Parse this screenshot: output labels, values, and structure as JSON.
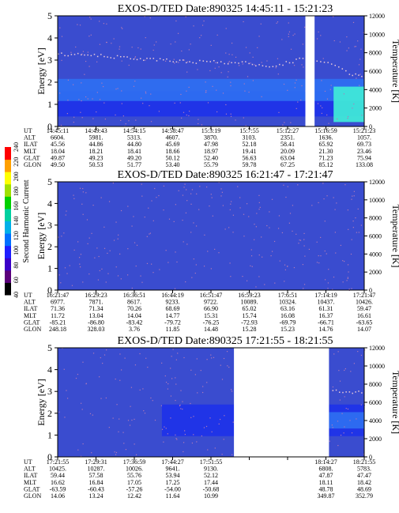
{
  "colors": {
    "background": "#3a4ccf",
    "band_dark": "#1f33e8",
    "band_light": "#2e6ef0",
    "noise_dot": "#b07ab8",
    "temperature_dot": "#e8c8d8",
    "bright_patch": "#3fe8d8",
    "data_gap": "#ffffff"
  },
  "colorbar": {
    "label": "Second Harmonic Current",
    "ticks": [
      "40",
      "60",
      "80",
      "100",
      "120",
      "140",
      "160",
      "180",
      "200",
      "220",
      "240"
    ],
    "colors": [
      "#000000",
      "#5a007a",
      "#3a00c8",
      "#1e1eff",
      "#0070ff",
      "#00b0e8",
      "#00d0a0",
      "#00d000",
      "#a0e000",
      "#ffff00",
      "#ffa000",
      "#ff0000"
    ]
  },
  "chart_data": [
    {
      "type": "heatmap",
      "title": "EXOS-D/TED   Date:890325   14:45:11 - 15:21:23",
      "ylabel": "Energy [eV]",
      "ylabel_right": "Temperature [K]",
      "ylim": [
        0,
        5
      ],
      "ylim_right": [
        0,
        12000
      ],
      "yticks": [
        "0",
        "1",
        "2",
        "3",
        "4",
        "5"
      ],
      "yticks_right": [
        "0",
        "2000",
        "4000",
        "6000",
        "8000",
        "10000",
        "12000"
      ],
      "gaps": [
        [
          0.808,
          0.838
        ]
      ],
      "bands": [
        {
          "from": 0.0,
          "to": 1.0,
          "e_low": 0.45,
          "e_high": 1.6,
          "color_key": "band_dark"
        },
        {
          "from": 0.0,
          "to": 1.0,
          "e_low": 1.15,
          "e_high": 2.15,
          "color_key": "band_light"
        },
        {
          "from": 0.9,
          "to": 1.0,
          "e_low": 0.2,
          "e_high": 1.8,
          "color_key": "bright_patch"
        }
      ],
      "temperature_trace": [
        [
          0.0,
          3.3
        ],
        [
          0.15,
          3.2
        ],
        [
          0.3,
          3.05
        ],
        [
          0.45,
          2.95
        ],
        [
          0.6,
          2.9
        ],
        [
          0.7,
          2.75
        ],
        [
          0.82,
          3.15
        ],
        [
          0.88,
          2.9
        ],
        [
          0.95,
          2.45
        ],
        [
          1.0,
          2.2
        ]
      ],
      "ephemeris": {
        "labels": [
          "UT",
          "ALT",
          "ILAT",
          "MLT",
          "GLAT",
          "GLON"
        ],
        "columns": [
          [
            "14:45:11",
            "6604.",
            "45.56",
            "18.04",
            "49.87",
            "49.50"
          ],
          [
            "14:49:43",
            "5981.",
            "44.86",
            "18.21",
            "49.23",
            "50.53"
          ],
          [
            "14:54:15",
            "5313.",
            "44.80",
            "18.41",
            "49.20",
            "51.77"
          ],
          [
            "14:58:47",
            "4607.",
            "45.69",
            "18.66",
            "50.12",
            "53.40"
          ],
          [
            "15:3:19",
            "3870.",
            "47.98",
            "18.97",
            "52.40",
            "55.79"
          ],
          [
            "15:7:55",
            "3103.",
            "52.18",
            "19.41",
            "56.63",
            "59.78"
          ],
          [
            "15:12:27",
            "2351.",
            "58.41",
            "20.09",
            "63.04",
            "67.25"
          ],
          [
            "15:16:59",
            "1636.",
            "65.92",
            "21.30",
            "71.23",
            "85.12"
          ],
          [
            "15:21:23",
            "1057.",
            "69.73",
            "23.46",
            "75.94",
            "133.08"
          ]
        ]
      }
    },
    {
      "type": "heatmap",
      "title": "EXOS-D/TED   Date:890325   16:21:47 - 17:21:47",
      "ylabel": "Energy [eV]",
      "ylabel_right": "Temperature [K]",
      "ylim": [
        0,
        5
      ],
      "ylim_right": [
        0,
        12000
      ],
      "yticks": [
        "0",
        "1",
        "2",
        "3",
        "4",
        "5"
      ],
      "yticks_right": [
        "0",
        "2000",
        "4000",
        "6000",
        "8000",
        "10000",
        "12000"
      ],
      "gaps": [],
      "bands": [],
      "temperature_trace": [],
      "ephemeris": {
        "labels": [
          "UT",
          "ALT",
          "ILAT",
          "MLT",
          "GLAT",
          "GLON"
        ],
        "columns": [
          [
            "16:21:47",
            "6977.",
            "71.36",
            "11.72",
            "-85.21",
            "248.18"
          ],
          [
            "16:29:23",
            "7871.",
            "71.34",
            "13.04",
            "-86.80",
            "328.03"
          ],
          [
            "16:36:51",
            "8617.",
            "70.26",
            "14.04",
            "-83.42",
            "3.76"
          ],
          [
            "16:44:19",
            "9233.",
            "68.69",
            "14.77",
            "-79.72",
            "11.85"
          ],
          [
            "16:51:47",
            "9722.",
            "66.90",
            "15.31",
            "-76.25",
            "14.48"
          ],
          [
            "16:59:23",
            "10089.",
            "65.02",
            "15.74",
            "-72.93",
            "15.28"
          ],
          [
            "17:6:51",
            "10324.",
            "63.16",
            "16.08",
            "-69.79",
            "15.23"
          ],
          [
            "17:14:19",
            "10437.",
            "61.31",
            "16.37",
            "-66.71",
            "14.76"
          ],
          [
            "17:21:47",
            "10426.",
            "59.47",
            "16.61",
            "-63.65",
            "14.07"
          ]
        ]
      }
    },
    {
      "type": "heatmap",
      "title": "EXOS-D/TED   Date:890325   17:21:55 - 18:21:55",
      "ylabel": "Energy [eV]",
      "ylabel_right": "Temperature [K]",
      "ylim": [
        0,
        5
      ],
      "ylim_right": [
        0,
        12000
      ],
      "yticks": [
        "0",
        "1",
        "2",
        "3",
        "4",
        "5"
      ],
      "yticks_right": [
        "0",
        "2000",
        "4000",
        "6000",
        "8000",
        "10000",
        "12000"
      ],
      "gaps": [
        [
          0.575,
          0.885
        ]
      ],
      "bands": [
        {
          "from": 0.34,
          "to": 0.575,
          "e_low": 0.95,
          "e_high": 2.4,
          "color_key": "band_dark"
        },
        {
          "from": 0.885,
          "to": 1.0,
          "e_low": 0.95,
          "e_high": 2.4,
          "color_key": "band_dark"
        },
        {
          "from": 0.885,
          "to": 1.0,
          "e_low": 1.3,
          "e_high": 2.05,
          "color_key": "band_light"
        }
      ],
      "temperature_trace": [
        [
          0.885,
          3.05
        ],
        [
          0.95,
          3.0
        ],
        [
          1.0,
          2.95
        ]
      ],
      "ephemeris": {
        "labels": [
          "UT",
          "ALT",
          "ILAT",
          "MLT",
          "GLAT",
          "GLON"
        ],
        "columns": [
          [
            "17:21:55",
            "10425.",
            "59.44",
            "16.62",
            "-63.59",
            "14.06"
          ],
          [
            "17:29:31",
            "10287.",
            "57.58",
            "16.84",
            "-60.43",
            "13.24"
          ],
          [
            "17:36:59",
            "10026.",
            "55.76",
            "17.05",
            "-57.26",
            "12.42"
          ],
          [
            "17:44:27",
            "9641.",
            "53.94",
            "17.25",
            "-54.00",
            "11.64"
          ],
          [
            "17:51:55",
            "9130.",
            "52.12",
            "17.44",
            "-50.68",
            "10.99"
          ],
          [
            "",
            "",
            "",
            "",
            "",
            ""
          ],
          [
            "",
            "",
            "",
            "",
            "",
            ""
          ],
          [
            "18:14:27",
            "6808.",
            "47.87",
            "18.11",
            "48.78",
            "349.87"
          ],
          [
            "18:21:55",
            "5783.",
            "47.47",
            "18.42",
            "48.69",
            "352.79"
          ]
        ]
      }
    }
  ]
}
